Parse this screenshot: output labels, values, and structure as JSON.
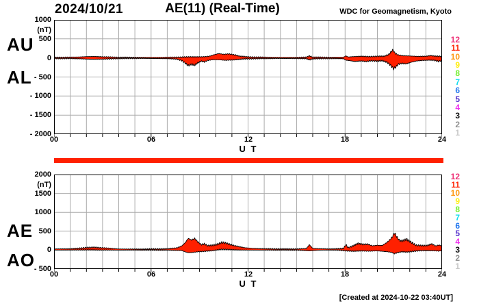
{
  "header": {
    "date": "2024/10/21",
    "title": "AE(11) (Real-Time)",
    "source": "WDC for Geomagnetism, Kyoto"
  },
  "footer": {
    "created_note": "[Created at 2024-10-22 03:40UT]"
  },
  "axis": {
    "x_label": "U T",
    "unit_label": "(nT)"
  },
  "legend": {
    "station_counts": [
      "12",
      "11",
      "10",
      "9",
      "8",
      "7",
      "6",
      "5",
      "4",
      "3",
      "2",
      "1"
    ],
    "colors": [
      "#ee3377",
      "#ff2200",
      "#ff9911",
      "#ffee11",
      "#77ee33",
      "#11ddee",
      "#2277ee",
      "#5533cc",
      "#ee33ee",
      "#111111",
      "#909090",
      "#c8c8c8"
    ]
  },
  "availability_bar": {
    "color": "#ff2000"
  },
  "colors": {
    "trace_fill": "#ff2000",
    "trace_stroke": "#000000",
    "grid": "#aaaaaa",
    "frame": "#000000",
    "background": "#ffffff"
  },
  "chart_data": [
    {
      "type": "area",
      "title": "AU and AL indices",
      "left_labels": [
        "AU",
        "AL"
      ],
      "ylabel": "(nT)",
      "xlabel": "U T",
      "xlim": [
        0,
        24
      ],
      "ylim": [
        -2000,
        1000
      ],
      "yticks": [
        1000,
        500,
        0,
        -500,
        -1000,
        -1500,
        -2000
      ],
      "xtick_hours": [
        0,
        6,
        12,
        18,
        24
      ],
      "xtick_labels": [
        "00",
        "06",
        "12",
        "18",
        "24"
      ],
      "grid": true,
      "series": [
        {
          "name": "AU",
          "points": [
            [
              0,
              15
            ],
            [
              0.5,
              16
            ],
            [
              1,
              18
            ],
            [
              1.5,
              24
            ],
            [
              2,
              35
            ],
            [
              2.5,
              38
            ],
            [
              3,
              30
            ],
            [
              3.5,
              22
            ],
            [
              4,
              15
            ],
            [
              5,
              14
            ],
            [
              6,
              15
            ],
            [
              7,
              16
            ],
            [
              7.5,
              18
            ],
            [
              8,
              22
            ],
            [
              8.4,
              28
            ],
            [
              8.8,
              30
            ],
            [
              9.2,
              28
            ],
            [
              9.6,
              45
            ],
            [
              9.9,
              85
            ],
            [
              10.2,
              115
            ],
            [
              10.5,
              95
            ],
            [
              10.8,
              105
            ],
            [
              11.2,
              80
            ],
            [
              11.5,
              45
            ],
            [
              12,
              26
            ],
            [
              12.5,
              20
            ],
            [
              13,
              18
            ],
            [
              14,
              15
            ],
            [
              15,
              14
            ],
            [
              15.6,
              18
            ],
            [
              15.8,
              55
            ],
            [
              16,
              20
            ],
            [
              17,
              15
            ],
            [
              17.9,
              18
            ],
            [
              18.05,
              55
            ],
            [
              18.2,
              25
            ],
            [
              18.5,
              35
            ],
            [
              19,
              42
            ],
            [
              19.5,
              35
            ],
            [
              20,
              42
            ],
            [
              20.4,
              45
            ],
            [
              20.7,
              90
            ],
            [
              20.95,
              210
            ],
            [
              21.1,
              120
            ],
            [
              21.3,
              75
            ],
            [
              21.6,
              60
            ],
            [
              22,
              52
            ],
            [
              22.5,
              40
            ],
            [
              23,
              45
            ],
            [
              23.3,
              65
            ],
            [
              23.6,
              45
            ],
            [
              24,
              40
            ]
          ]
        },
        {
          "name": "AL",
          "points": [
            [
              0,
              -15
            ],
            [
              0.5,
              -17
            ],
            [
              1,
              -15
            ],
            [
              1.5,
              -20
            ],
            [
              2,
              -30
            ],
            [
              2.5,
              -35
            ],
            [
              3,
              -30
            ],
            [
              3.5,
              -24
            ],
            [
              4,
              -15
            ],
            [
              5,
              -12
            ],
            [
              6,
              -14
            ],
            [
              7,
              -18
            ],
            [
              7.6,
              -30
            ],
            [
              7.9,
              -70
            ],
            [
              8.1,
              -130
            ],
            [
              8.3,
              -200
            ],
            [
              8.5,
              -165
            ],
            [
              8.7,
              -185
            ],
            [
              8.9,
              -125
            ],
            [
              9.1,
              -85
            ],
            [
              9.3,
              -105
            ],
            [
              9.5,
              -65
            ],
            [
              9.8,
              -45
            ],
            [
              10.2,
              -48
            ],
            [
              10.6,
              -62
            ],
            [
              11,
              -52
            ],
            [
              11.4,
              -40
            ],
            [
              11.8,
              -26
            ],
            [
              12.3,
              -20
            ],
            [
              13,
              -16
            ],
            [
              14,
              -13
            ],
            [
              15,
              -15
            ],
            [
              15.6,
              -20
            ],
            [
              15.8,
              -48
            ],
            [
              16,
              -22
            ],
            [
              17,
              -15
            ],
            [
              17.9,
              -20
            ],
            [
              18.05,
              -58
            ],
            [
              18.3,
              -72
            ],
            [
              18.6,
              -92
            ],
            [
              19,
              -80
            ],
            [
              19.3,
              -95
            ],
            [
              19.6,
              -72
            ],
            [
              20,
              -85
            ],
            [
              20.3,
              -72
            ],
            [
              20.6,
              -112
            ],
            [
              20.8,
              -185
            ],
            [
              21,
              -280
            ],
            [
              21.15,
              -235
            ],
            [
              21.3,
              -165
            ],
            [
              21.5,
              -142
            ],
            [
              21.8,
              -152
            ],
            [
              22.1,
              -112
            ],
            [
              22.4,
              -82
            ],
            [
              22.8,
              -65
            ],
            [
              23.2,
              -55
            ],
            [
              23.5,
              -62
            ],
            [
              23.8,
              -92
            ],
            [
              24,
              -62
            ]
          ]
        }
      ]
    },
    {
      "type": "area",
      "title": "AE and AO indices",
      "left_labels": [
        "AE",
        "AO"
      ],
      "ylabel": "(nT)",
      "xlabel": "U T",
      "xlim": [
        0,
        24
      ],
      "ylim": [
        -500,
        2000
      ],
      "yticks": [
        2000,
        1500,
        1000,
        500,
        0,
        -500
      ],
      "xtick_hours": [
        0,
        6,
        12,
        18,
        24
      ],
      "xtick_labels": [
        "00",
        "06",
        "12",
        "18",
        "24"
      ],
      "grid": true,
      "series": [
        {
          "name": "AE",
          "points": [
            [
              0,
              30
            ],
            [
              0.5,
              33
            ],
            [
              1,
              35
            ],
            [
              1.5,
              45
            ],
            [
              2,
              65
            ],
            [
              2.5,
              72
            ],
            [
              3,
              60
            ],
            [
              3.5,
              46
            ],
            [
              4,
              30
            ],
            [
              5,
              26
            ],
            [
              6,
              29
            ],
            [
              7,
              34
            ],
            [
              7.6,
              60
            ],
            [
              7.9,
              110
            ],
            [
              8.1,
              190
            ],
            [
              8.3,
              310
            ],
            [
              8.5,
              265
            ],
            [
              8.7,
              305
            ],
            [
              8.9,
              215
            ],
            [
              9.1,
              145
            ],
            [
              9.3,
              165
            ],
            [
              9.5,
              115
            ],
            [
              9.8,
              125
            ],
            [
              10.1,
              155
            ],
            [
              10.4,
              205
            ],
            [
              10.7,
              175
            ],
            [
              11,
              135
            ],
            [
              11.4,
              95
            ],
            [
              11.8,
              62
            ],
            [
              12.3,
              46
            ],
            [
              13,
              36
            ],
            [
              14,
              30
            ],
            [
              15,
              30
            ],
            [
              15.6,
              40
            ],
            [
              15.8,
              145
            ],
            [
              16,
              45
            ],
            [
              17,
              30
            ],
            [
              17.9,
              42
            ],
            [
              18.05,
              140
            ],
            [
              18.2,
              62
            ],
            [
              18.5,
              115
            ],
            [
              18.8,
              175
            ],
            [
              19.1,
              150
            ],
            [
              19.4,
              158
            ],
            [
              19.7,
              112
            ],
            [
              20,
              130
            ],
            [
              20.3,
              122
            ],
            [
              20.6,
              205
            ],
            [
              20.8,
              285
            ],
            [
              20.95,
              365
            ],
            [
              21.05,
              460
            ],
            [
              21.2,
              350
            ],
            [
              21.35,
              265
            ],
            [
              21.5,
              235
            ],
            [
              21.8,
              285
            ],
            [
              22.1,
              205
            ],
            [
              22.4,
              125
            ],
            [
              22.8,
              118
            ],
            [
              23.1,
              125
            ],
            [
              23.35,
              165
            ],
            [
              23.6,
              108
            ],
            [
              23.8,
              135
            ],
            [
              24,
              110
            ]
          ]
        },
        {
          "name": "AO",
          "points": [
            [
              0,
              0
            ],
            [
              1,
              2
            ],
            [
              2,
              6
            ],
            [
              3,
              2
            ],
            [
              4,
              0
            ],
            [
              5,
              0
            ],
            [
              6,
              1
            ],
            [
              7,
              -2
            ],
            [
              7.9,
              -12
            ],
            [
              8.1,
              -45
            ],
            [
              8.3,
              -70
            ],
            [
              8.6,
              -62
            ],
            [
              8.9,
              -42
            ],
            [
              9.3,
              -32
            ],
            [
              9.8,
              -15
            ],
            [
              10.3,
              20
            ],
            [
              10.8,
              15
            ],
            [
              11.5,
              2
            ],
            [
              12.5,
              0
            ],
            [
              14,
              0
            ],
            [
              15,
              0
            ],
            [
              15.8,
              -18
            ],
            [
              16.5,
              0
            ],
            [
              17.5,
              0
            ],
            [
              18.05,
              -18
            ],
            [
              18.6,
              -28
            ],
            [
              19,
              -20
            ],
            [
              19.5,
              -26
            ],
            [
              20,
              -20
            ],
            [
              20.6,
              -42
            ],
            [
              20.9,
              -62
            ],
            [
              21.05,
              -95
            ],
            [
              21.2,
              -72
            ],
            [
              21.5,
              -46
            ],
            [
              21.8,
              -52
            ],
            [
              22.2,
              -32
            ],
            [
              22.6,
              -16
            ],
            [
              23,
              -10
            ],
            [
              23.5,
              -16
            ],
            [
              23.8,
              -26
            ],
            [
              24,
              -12
            ]
          ]
        }
      ]
    }
  ]
}
